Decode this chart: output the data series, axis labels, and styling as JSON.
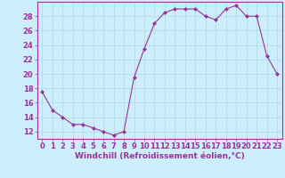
{
  "x": [
    0,
    1,
    2,
    3,
    4,
    5,
    6,
    7,
    8,
    9,
    10,
    11,
    12,
    13,
    14,
    15,
    16,
    17,
    18,
    19,
    20,
    21,
    22,
    23
  ],
  "y": [
    17.5,
    15.0,
    14.0,
    13.0,
    13.0,
    12.5,
    12.0,
    11.5,
    12.0,
    19.5,
    23.5,
    27.0,
    28.5,
    29.0,
    29.0,
    29.0,
    28.0,
    27.5,
    29.0,
    29.5,
    28.0,
    28.0,
    22.5,
    20.0
  ],
  "line_color": "#993399",
  "marker": "D",
  "markersize": 2.0,
  "linewidth": 0.8,
  "bg_color": "#cceeff",
  "grid_color": "#aadddd",
  "xlabel": "Windchill (Refroidissement éolien,°C)",
  "xlabel_fontsize": 6.5,
  "tick_fontsize": 6.0,
  "ylim": [
    11,
    30
  ],
  "xlim": [
    -0.5,
    23.5
  ],
  "yticks": [
    12,
    14,
    16,
    18,
    20,
    22,
    24,
    26,
    28
  ],
  "xticks": [
    0,
    1,
    2,
    3,
    4,
    5,
    6,
    7,
    8,
    9,
    10,
    11,
    12,
    13,
    14,
    15,
    16,
    17,
    18,
    19,
    20,
    21,
    22,
    23
  ]
}
